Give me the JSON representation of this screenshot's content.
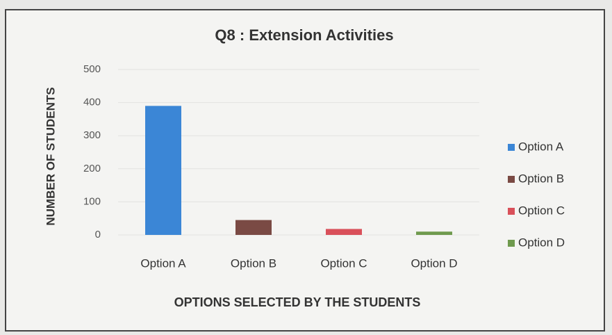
{
  "chart_data": {
    "type": "bar",
    "title": "Q8 : Extension Activities",
    "x_label": "OPTIONS SELECTED BY THE STUDENTS",
    "y_label": "NUMBER OF STUDENTS",
    "categories": [
      "Option A",
      "Option B",
      "Option C",
      "Option D"
    ],
    "values": [
      390,
      45,
      18,
      10
    ],
    "colors": [
      "#3b86d6",
      "#7a4a44",
      "#d9505a",
      "#6f9a4e"
    ],
    "ylim": [
      0,
      500
    ],
    "yticks": [
      0,
      100,
      200,
      300,
      400,
      500
    ],
    "legend": "right"
  }
}
